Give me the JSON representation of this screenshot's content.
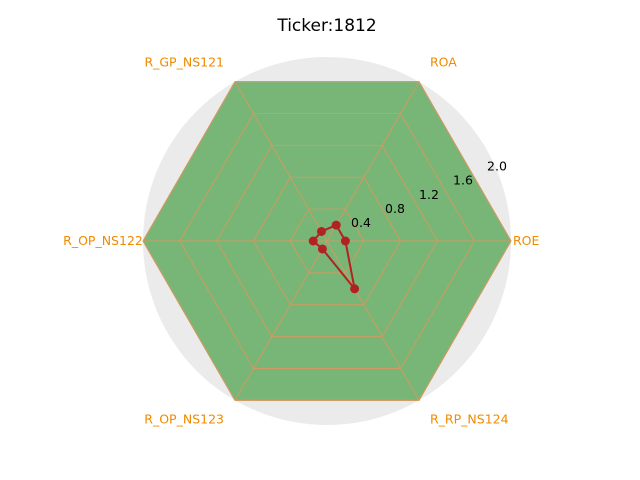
{
  "chart_data": {
    "type": "radar",
    "title": "Ticker:1812",
    "axes": [
      "ROE",
      "ROA",
      "R_GP_NS121",
      "R_OP_NS122",
      "R_OP_NS123",
      "R_RP_NS124"
    ],
    "rlim": [
      0,
      2.0
    ],
    "rticks": [
      0.4,
      0.8,
      1.2,
      1.6,
      2.0
    ],
    "series": [
      {
        "values": [
          0.2,
          0.2,
          0.12,
          0.15,
          0.1,
          0.6
        ]
      }
    ],
    "reference_fill_value": 2.0,
    "grid": true,
    "colors": {
      "background_circle": "#ebebeb",
      "hexagon_fill": "#77b677",
      "hexagon_stroke": "#e0a070",
      "grid": "#d09a60",
      "axis_label": "#f08a00",
      "series_line": "#b22222"
    }
  }
}
